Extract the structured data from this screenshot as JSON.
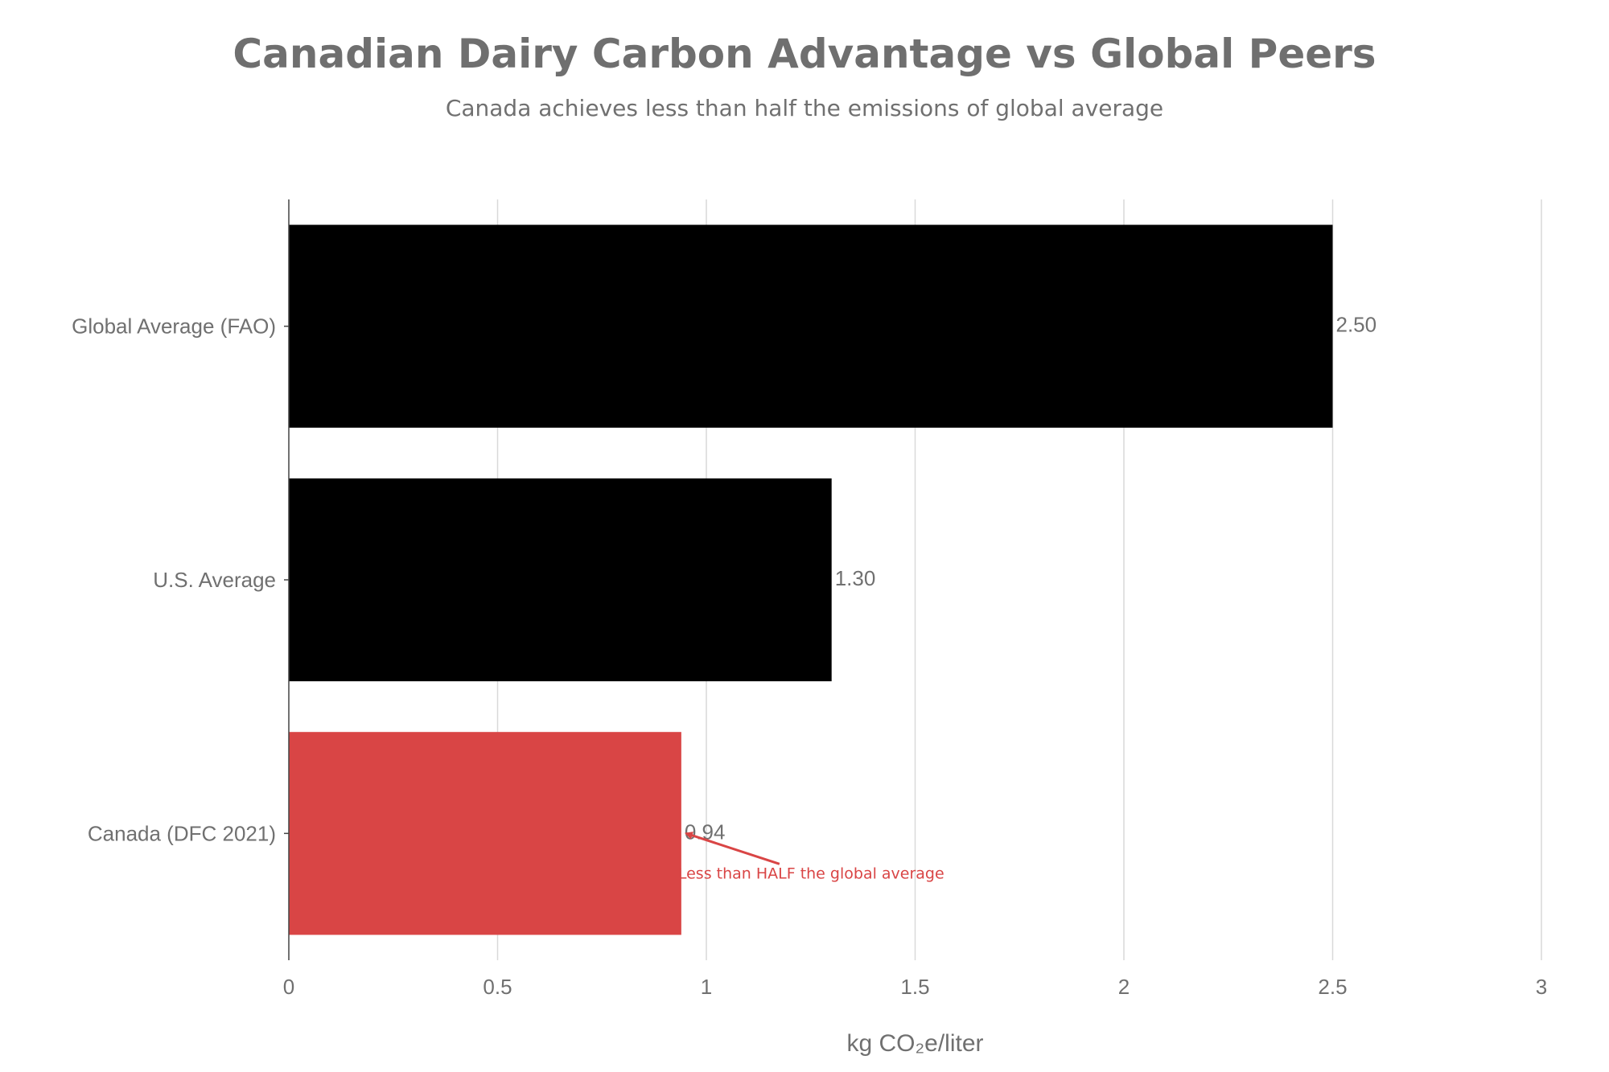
{
  "chart_data": {
    "type": "bar",
    "orientation": "horizontal",
    "title": "Canadian Dairy Carbon Advantage vs Global Peers",
    "subtitle": "Canada achieves less than half the emissions of global average",
    "categories": [
      "Global Average (FAO)",
      "U.S. Average",
      "Canada (DFC 2021)"
    ],
    "values": [
      2.5,
      1.3,
      0.94
    ],
    "value_labels": [
      "2.50",
      "1.30",
      "0.94"
    ],
    "bar_colors": [
      "#000000",
      "#000000",
      "#d94545"
    ],
    "xlabel": "kg CO₂e/liter",
    "ylabel": "",
    "xlim": [
      0,
      3
    ],
    "xticks": [
      0,
      0.5,
      1,
      1.5,
      2,
      2.5,
      3
    ],
    "xtick_labels": [
      "0",
      "0.5",
      "1",
      "1.5",
      "2",
      "2.5",
      "3"
    ],
    "grid": true,
    "grid_color": "#d9d9d9",
    "annotation": {
      "text": "Less than HALF the global average",
      "category": "Canada (DFC 2021)",
      "value": 0.94,
      "color": "#d94545"
    }
  }
}
